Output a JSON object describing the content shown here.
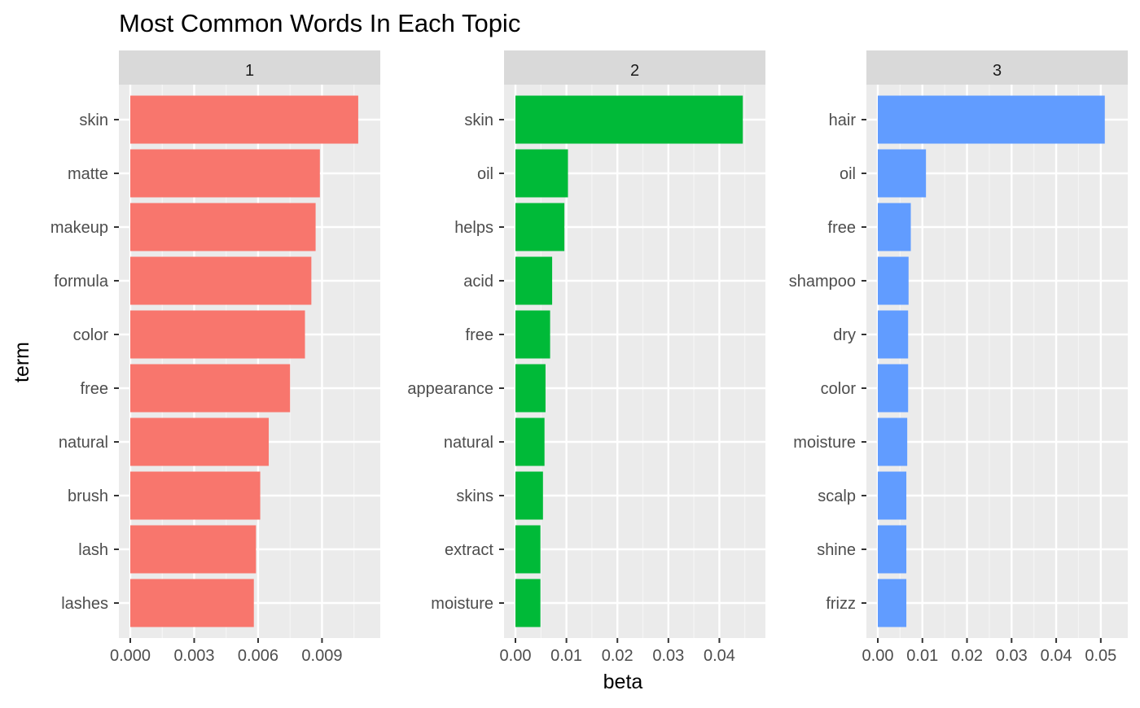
{
  "chart_data": {
    "type": "bar",
    "orientation": "horizontal",
    "title": "Most Common Words In Each Topic",
    "xlabel": "beta",
    "ylabel": "term",
    "grid": true,
    "panels": [
      {
        "strip": "1",
        "color": "#F8766D",
        "xlim": [
          0,
          0.0112
        ],
        "ticks": [
          0,
          0.003,
          0.006,
          0.009
        ],
        "tick_labels": [
          "0.000",
          "0.003",
          "0.006",
          "0.009"
        ],
        "terms": [
          "skin",
          "matte",
          "makeup",
          "formula",
          "color",
          "free",
          "natural",
          "brush",
          "lash",
          "lashes"
        ],
        "values": [
          0.0107,
          0.0089,
          0.0087,
          0.0085,
          0.0082,
          0.0075,
          0.0065,
          0.0061,
          0.0059,
          0.0058
        ]
      },
      {
        "strip": "2",
        "color": "#00BA38",
        "xlim": [
          0,
          0.0468
        ],
        "ticks": [
          0,
          0.01,
          0.02,
          0.03,
          0.04
        ],
        "tick_labels": [
          "0.00",
          "0.01",
          "0.02",
          "0.03",
          "0.04"
        ],
        "terms": [
          "skin",
          "oil",
          "helps",
          "acid",
          "free",
          "appearance",
          "natural",
          "skins",
          "extract",
          "moisture"
        ],
        "values": [
          0.0446,
          0.0103,
          0.0096,
          0.0072,
          0.0068,
          0.0059,
          0.0057,
          0.0054,
          0.0049,
          0.0049
        ]
      },
      {
        "strip": "3",
        "color": "#619CFF",
        "xlim": [
          0,
          0.0535
        ],
        "ticks": [
          0,
          0.01,
          0.02,
          0.03,
          0.04,
          0.05
        ],
        "tick_labels": [
          "0.00",
          "0.01",
          "0.02",
          "0.03",
          "0.04",
          "0.05"
        ],
        "terms": [
          "hair",
          "oil",
          "free",
          "shampoo",
          "dry",
          "color",
          "moisture",
          "scalp",
          "shine",
          "frizz"
        ],
        "values": [
          0.0509,
          0.0108,
          0.0074,
          0.0069,
          0.0068,
          0.0068,
          0.0066,
          0.0064,
          0.0064,
          0.0064
        ]
      }
    ]
  }
}
